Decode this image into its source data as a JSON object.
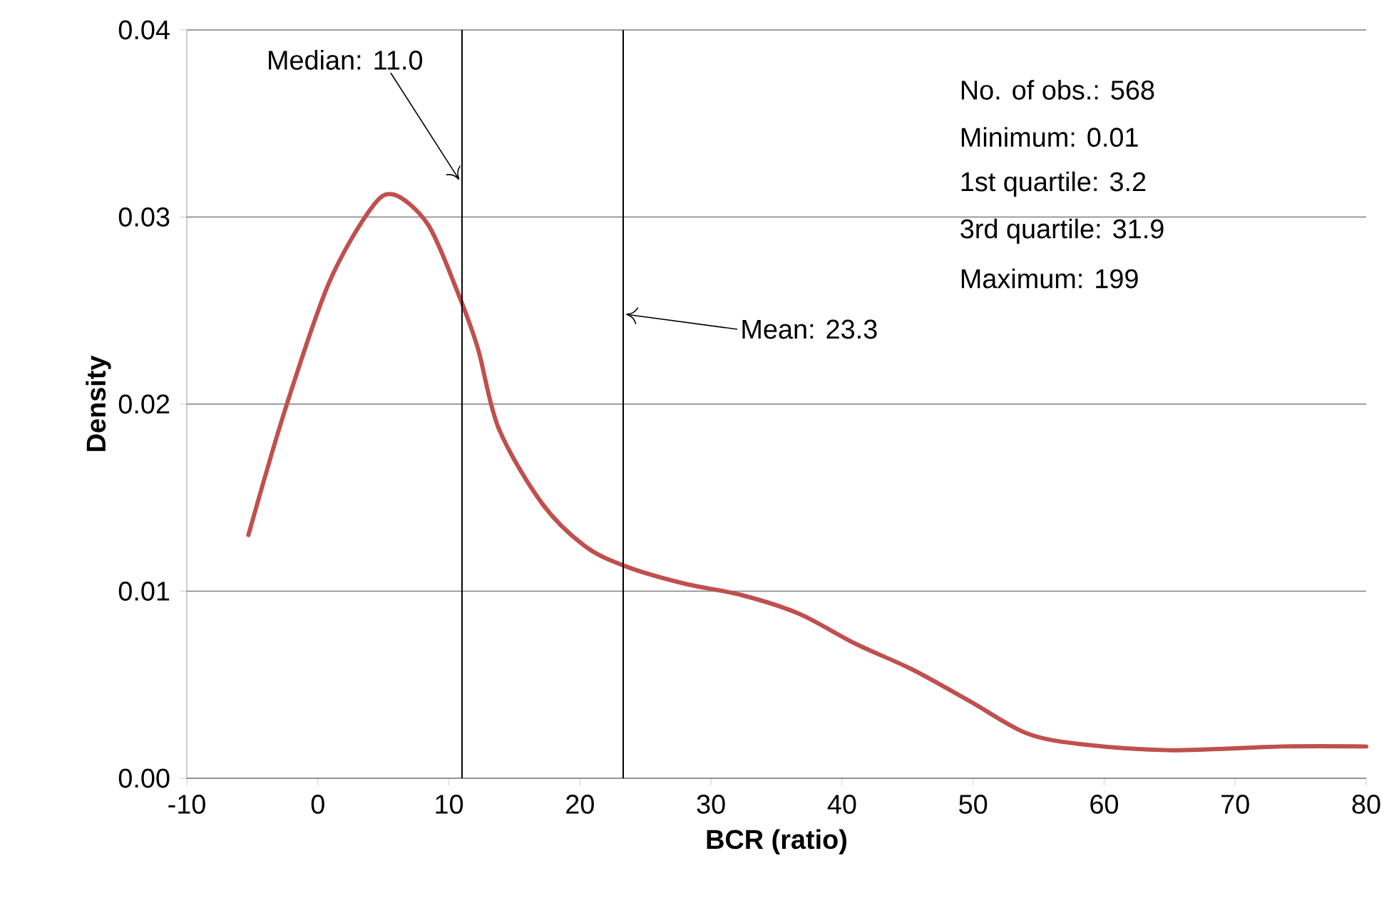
{
  "chart_data": {
    "type": "line",
    "xlabel": "BCR (ratio)",
    "ylabel": "Density",
    "series": [
      {
        "color": "#c0504d",
        "x": [
          -5.3,
          -2.5,
          0.8,
          4,
          5.8,
          8.4,
          10.6,
          12.2,
          13.8,
          17.1,
          20.4,
          23.6,
          28,
          32.3,
          36.7,
          41,
          45.4,
          49.8,
          54.1,
          58.5,
          65,
          73.7,
          80
        ],
        "values": [
          0.013,
          0.0197,
          0.0264,
          0.0304,
          0.0312,
          0.0296,
          0.0261,
          0.023,
          0.0187,
          0.0147,
          0.0124,
          0.0113,
          0.0104,
          0.0098,
          0.0088,
          0.0072,
          0.0058,
          0.0041,
          0.0024,
          0.0018,
          0.0015,
          0.0017,
          0.0017
        ]
      }
    ],
    "xlim": [
      -10,
      80
    ],
    "xticks": [
      -10,
      0,
      10,
      20,
      30,
      40,
      50,
      60,
      70,
      80
    ],
    "ylim": [
      0,
      0.04
    ],
    "yticks": [
      {
        "value": 0,
        "label": "0.00"
      },
      {
        "value": 0.01,
        "label": "0.01"
      },
      {
        "value": 0.02,
        "label": "0.02"
      },
      {
        "value": 0.03,
        "label": "0.03"
      },
      {
        "value": 0.04,
        "label": "0.04"
      }
    ],
    "ref_lines": [
      {
        "axis": "x",
        "value": 11.0,
        "label": "Median: 11.0",
        "color": "#000000"
      },
      {
        "axis": "x",
        "value": 23.3,
        "label": "Mean: 23.3",
        "color": "#000000"
      }
    ],
    "annotations": [
      "No. of obs.:  568",
      "Minimum:    0.01",
      "1st quartile:  3.2",
      "3rd quartile:  31.9",
      "Maximum:     199"
    ],
    "grid": "y",
    "marker": "none",
    "line_style": "solid"
  }
}
